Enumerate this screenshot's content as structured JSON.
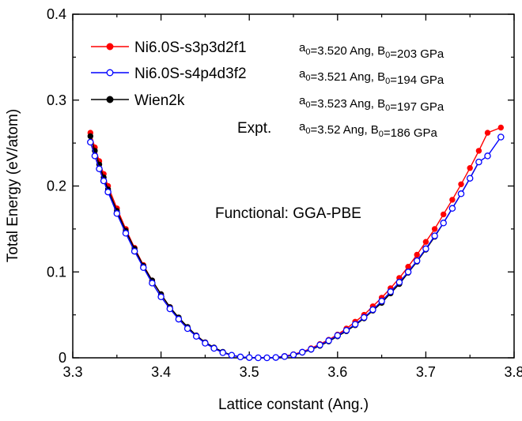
{
  "chart_data": {
    "type": "line",
    "xlabel": "Lattice constant (Ang.)",
    "ylabel": "Total Energy (eV/atom)",
    "xlim": [
      3.3,
      3.8
    ],
    "ylim": [
      0,
      0.4
    ],
    "xticks": [
      "3.3",
      "3.4",
      "3.5",
      "3.6",
      "3.7",
      "3.8"
    ],
    "yticks": [
      "0",
      "0.1",
      "0.2",
      "0.3",
      "0.4"
    ],
    "grid": false,
    "legend_position": "top-left",
    "annotation": "Functional: GGA-PBE",
    "expt_label": "Expt.",
    "series": [
      {
        "name": "Ni6.0S-s3p3d2f1",
        "color": "#ff0000",
        "marker": "filled-circle",
        "params": {
          "prefix": "a",
          "sub": "0",
          "a_text": "=3.520 Ang, B",
          "b_sub": "0",
          "b_text": "=203 GPa"
        },
        "points": [
          [
            3.32,
            0.262
          ],
          [
            3.325,
            0.245
          ],
          [
            3.33,
            0.229
          ],
          [
            3.335,
            0.214
          ],
          [
            3.34,
            0.2
          ],
          [
            3.35,
            0.174
          ],
          [
            3.36,
            0.15
          ],
          [
            3.37,
            0.128
          ],
          [
            3.38,
            0.108
          ],
          [
            3.39,
            0.09
          ],
          [
            3.4,
            0.074
          ],
          [
            3.41,
            0.059
          ],
          [
            3.42,
            0.046
          ],
          [
            3.43,
            0.035
          ],
          [
            3.44,
            0.026
          ],
          [
            3.45,
            0.018
          ],
          [
            3.46,
            0.011
          ],
          [
            3.47,
            0.006
          ],
          [
            3.48,
            0.003
          ],
          [
            3.49,
            0.001
          ],
          [
            3.5,
            0.0003
          ],
          [
            3.51,
            0.0
          ],
          [
            3.52,
            0.0
          ],
          [
            3.53,
            0.0005
          ],
          [
            3.54,
            0.002
          ],
          [
            3.55,
            0.004
          ],
          [
            3.56,
            0.007
          ],
          [
            3.57,
            0.011
          ],
          [
            3.58,
            0.016
          ],
          [
            3.59,
            0.021
          ],
          [
            3.6,
            0.027
          ],
          [
            3.61,
            0.034
          ],
          [
            3.62,
            0.042
          ],
          [
            3.63,
            0.05
          ],
          [
            3.64,
            0.06
          ],
          [
            3.65,
            0.07
          ],
          [
            3.66,
            0.081
          ],
          [
            3.67,
            0.093
          ],
          [
            3.68,
            0.106
          ],
          [
            3.69,
            0.12
          ],
          [
            3.7,
            0.135
          ],
          [
            3.71,
            0.15
          ],
          [
            3.72,
            0.167
          ],
          [
            3.73,
            0.184
          ],
          [
            3.74,
            0.202
          ],
          [
            3.75,
            0.221
          ],
          [
            3.76,
            0.241
          ],
          [
            3.77,
            0.262
          ],
          [
            3.785,
            0.268
          ]
        ]
      },
      {
        "name": "Ni6.0S-s4p4d3f2",
        "color": "#0000ff",
        "marker": "open-circle",
        "params": {
          "prefix": "a",
          "sub": "0",
          "a_text": "=3.521 Ang, B",
          "b_sub": "0",
          "b_text": "=194 GPa"
        },
        "points": [
          [
            3.32,
            0.251
          ],
          [
            3.325,
            0.235
          ],
          [
            3.33,
            0.22
          ],
          [
            3.335,
            0.206
          ],
          [
            3.34,
            0.193
          ],
          [
            3.35,
            0.168
          ],
          [
            3.36,
            0.145
          ],
          [
            3.37,
            0.124
          ],
          [
            3.38,
            0.105
          ],
          [
            3.39,
            0.087
          ],
          [
            3.4,
            0.071
          ],
          [
            3.41,
            0.057
          ],
          [
            3.42,
            0.045
          ],
          [
            3.43,
            0.034
          ],
          [
            3.44,
            0.025
          ],
          [
            3.45,
            0.017
          ],
          [
            3.46,
            0.011
          ],
          [
            3.47,
            0.006
          ],
          [
            3.48,
            0.003
          ],
          [
            3.49,
            0.001
          ],
          [
            3.5,
            0.0003
          ],
          [
            3.51,
            0.0
          ],
          [
            3.52,
            0.0
          ],
          [
            3.53,
            0.0004
          ],
          [
            3.54,
            0.0015
          ],
          [
            3.55,
            0.0035
          ],
          [
            3.56,
            0.0065
          ],
          [
            3.57,
            0.01
          ],
          [
            3.58,
            0.015
          ],
          [
            3.59,
            0.02
          ],
          [
            3.6,
            0.026
          ],
          [
            3.61,
            0.032
          ],
          [
            3.62,
            0.039
          ],
          [
            3.63,
            0.047
          ],
          [
            3.64,
            0.056
          ],
          [
            3.65,
            0.066
          ],
          [
            3.66,
            0.077
          ],
          [
            3.67,
            0.088
          ],
          [
            3.68,
            0.1
          ],
          [
            3.69,
            0.113
          ],
          [
            3.7,
            0.127
          ],
          [
            3.71,
            0.142
          ],
          [
            3.72,
            0.157
          ],
          [
            3.73,
            0.174
          ],
          [
            3.74,
            0.191
          ],
          [
            3.75,
            0.209
          ],
          [
            3.76,
            0.228
          ],
          [
            3.77,
            0.235
          ],
          [
            3.785,
            0.257
          ]
        ]
      },
      {
        "name": "Wien2k",
        "color": "#000000",
        "marker": "filled-circle",
        "params": {
          "prefix": "a",
          "sub": "0",
          "a_text": "=3.523 Ang, B",
          "b_sub": "0",
          "b_text": "=197 GPa"
        },
        "points": [
          [
            3.32,
            0.258
          ],
          [
            3.325,
            0.241
          ],
          [
            3.33,
            0.225
          ],
          [
            3.335,
            0.21
          ],
          [
            3.34,
            0.196
          ],
          [
            3.35,
            0.171
          ],
          [
            3.36,
            0.148
          ],
          [
            3.37,
            0.127
          ],
          [
            3.38,
            0.107
          ],
          [
            3.39,
            0.09
          ],
          [
            3.4,
            0.074
          ],
          [
            3.41,
            0.059
          ],
          [
            3.42,
            0.047
          ],
          [
            3.43,
            0.036
          ],
          [
            3.44,
            0.026
          ],
          [
            3.45,
            0.018
          ],
          [
            3.46,
            0.012
          ],
          [
            3.47,
            0.007
          ],
          [
            3.48,
            0.003
          ],
          [
            3.49,
            0.001
          ],
          [
            3.5,
            0.0003
          ],
          [
            3.51,
            0.0
          ],
          [
            3.52,
            0.0
          ],
          [
            3.53,
            0.0003
          ],
          [
            3.54,
            0.0012
          ],
          [
            3.55,
            0.003
          ],
          [
            3.56,
            0.006
          ],
          [
            3.57,
            0.0095
          ],
          [
            3.58,
            0.014
          ],
          [
            3.59,
            0.019
          ],
          [
            3.6,
            0.025
          ],
          [
            3.61,
            0.031
          ],
          [
            3.62,
            0.038
          ],
          [
            3.63,
            0.046
          ],
          [
            3.64,
            0.055
          ],
          [
            3.65,
            0.064
          ],
          [
            3.66,
            0.075
          ],
          [
            3.67,
            0.086
          ],
          [
            3.68,
            0.099
          ],
          [
            3.69,
            0.112
          ],
          [
            3.7,
            0.126
          ],
          [
            3.71,
            0.141
          ],
          [
            3.72,
            0.157
          ],
          [
            3.73,
            0.174
          ],
          [
            3.74,
            0.191
          ],
          [
            3.75,
            0.209
          ],
          [
            3.76,
            0.228
          ]
        ]
      }
    ],
    "expt_params": {
      "prefix": "a",
      "sub": "0",
      "a_text": "=3.52  Ang, B",
      "b_sub": "0",
      "b_text": "=186 GPa"
    }
  }
}
